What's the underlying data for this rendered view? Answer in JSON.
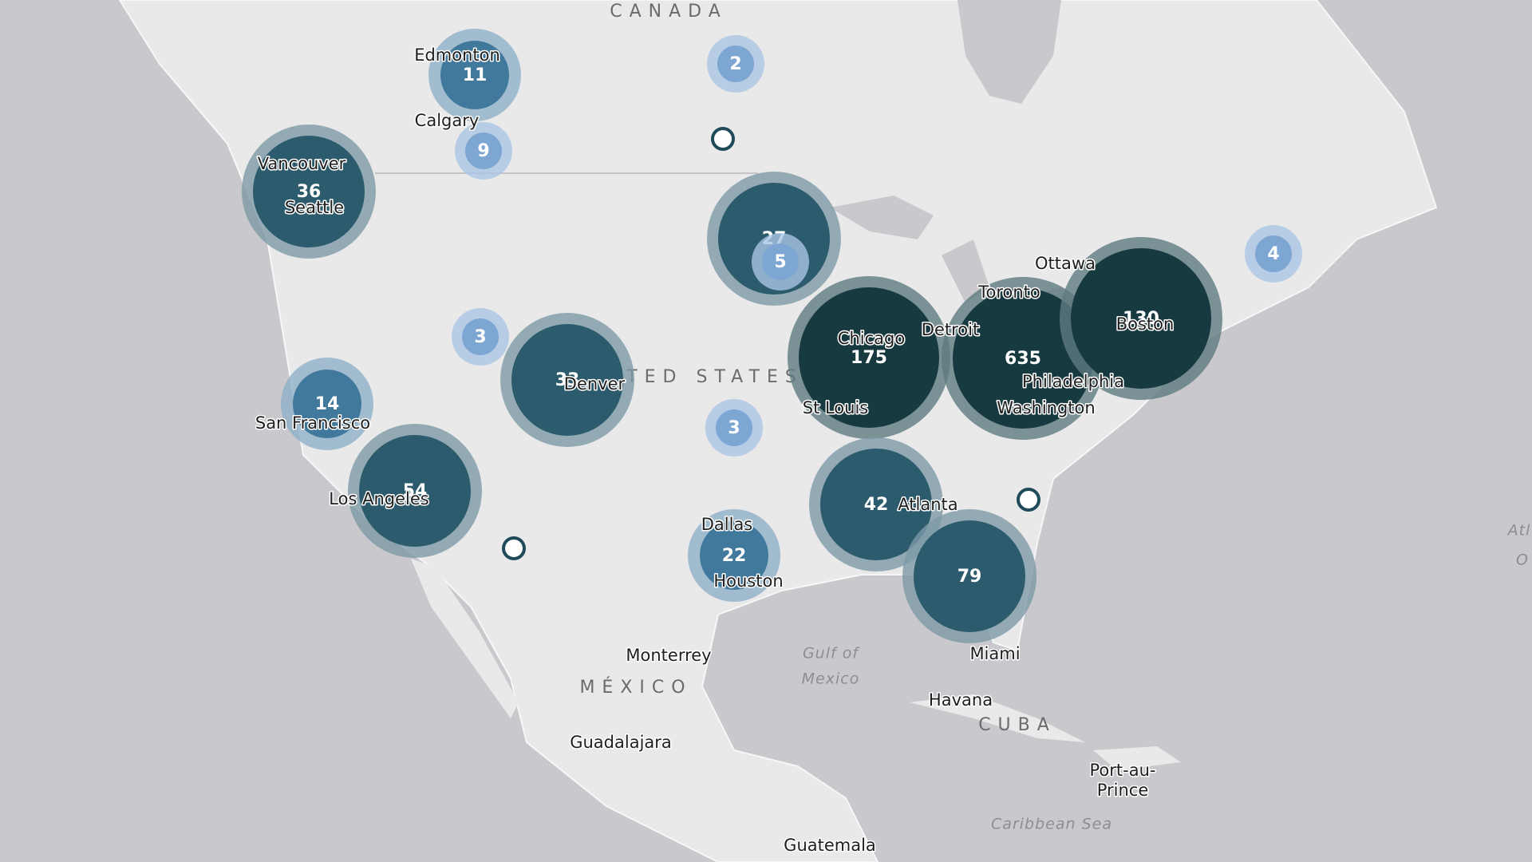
{
  "map": {
    "regions": [
      "CANADA",
      "UNITED STATES",
      "MÉXICO",
      "CUBA"
    ],
    "water": [
      "Gulf of",
      "Mexico",
      "Caribbean Sea",
      "Atl",
      "O"
    ],
    "cities": [
      "Edmonton",
      "Calgary",
      "Vancouver",
      "Seattle",
      "San Francisco",
      "Los Angeles",
      "Denver",
      "Dallas",
      "Houston",
      "Chicago",
      "St Louis",
      "Detroit",
      "Toronto",
      "Ottawa",
      "Boston",
      "Philadelphia",
      "Washington",
      "Atlanta",
      "Miami",
      "Monterrey",
      "Guadalajara",
      "Havana",
      "Port-au-",
      "Prince",
      "Guatemala"
    ],
    "clusters": [
      11,
      2,
      9,
      36,
      27,
      5,
      3,
      33,
      14,
      3,
      175,
      635,
      130,
      4,
      54,
      42,
      22,
      79
    ]
  }
}
